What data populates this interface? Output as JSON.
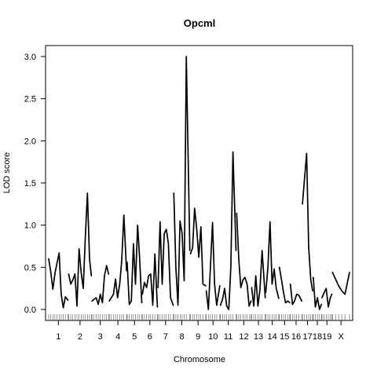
{
  "chart_data": {
    "type": "line",
    "title": "Opcml",
    "xlabel": "Chromosome",
    "ylabel": "LOD score",
    "ylim": [
      0,
      3.0
    ],
    "yticks": [
      0.0,
      0.5,
      1.0,
      1.5,
      2.0,
      2.5,
      3.0
    ],
    "ytick_labels": [
      "0.0",
      "0.5",
      "1.0",
      "1.5",
      "2.0",
      "2.5",
      "3.0"
    ],
    "grid": false,
    "chromosomes": [
      {
        "label": "1",
        "start": 0,
        "end": 93,
        "x": [
          0,
          10,
          20,
          30,
          40,
          50,
          60,
          70,
          80,
          93
        ],
        "y": [
          0.6,
          0.44,
          0.24,
          0.43,
          0.55,
          0.67,
          0.18,
          0.02,
          0.15,
          0.11
        ]
      },
      {
        "label": "2",
        "start": 96,
        "end": 205,
        "x": [
          96,
          106,
          116,
          126,
          136,
          146,
          156,
          166,
          176,
          186,
          196,
          205
        ],
        "y": [
          0.42,
          0.3,
          0.35,
          0.42,
          0.04,
          0.72,
          0.44,
          0.25,
          0.85,
          1.38,
          0.6,
          0.4
        ]
      },
      {
        "label": "3",
        "start": 208,
        "end": 288,
        "x": [
          208,
          218,
          228,
          238,
          248,
          258,
          268,
          278,
          288
        ],
        "y": [
          0.1,
          0.12,
          0.14,
          0.06,
          0.18,
          0.08,
          0.4,
          0.52,
          0.42
        ]
      },
      {
        "label": "4",
        "start": 291,
        "end": 374,
        "x": [
          291,
          301,
          311,
          321,
          331,
          341,
          351,
          361,
          374
        ],
        "y": [
          0.1,
          0.14,
          0.18,
          0.36,
          0.14,
          0.3,
          0.58,
          1.12,
          0.46
        ]
      },
      {
        "label": "5",
        "start": 377,
        "end": 447,
        "x": [
          377,
          387,
          397,
          407,
          417,
          427,
          437,
          447
        ],
        "y": [
          0.56,
          0.06,
          0.1,
          0.78,
          0.3,
          1.0,
          0.6,
          0.08
        ]
      },
      {
        "label": "6",
        "start": 450,
        "end": 522,
        "x": [
          450,
          460,
          470,
          480,
          490,
          500,
          510,
          522
        ],
        "y": [
          0.18,
          0.32,
          0.26,
          0.4,
          0.42,
          0.05,
          0.66,
          0.03
        ]
      },
      {
        "label": "7",
        "start": 525,
        "end": 598,
        "x": [
          525,
          535,
          545,
          555,
          565,
          575,
          585,
          598
        ],
        "y": [
          0.26,
          1.04,
          0.3,
          0.9,
          0.95,
          0.78,
          0.14,
          0.05
        ]
      },
      {
        "label": "8",
        "start": 601,
        "end": 678,
        "x": [
          601,
          611,
          621,
          631,
          641,
          651,
          661,
          678
        ],
        "y": [
          1.38,
          0.5,
          0.05,
          1.05,
          0.9,
          0.34,
          3.0,
          0.7
        ]
      },
      {
        "label": "9",
        "start": 681,
        "end": 754,
        "x": [
          681,
          691,
          701,
          711,
          721,
          731,
          741,
          754
        ],
        "y": [
          0.66,
          0.73,
          1.2,
          0.95,
          0.62,
          0.98,
          0.3,
          0.28
        ]
      },
      {
        "label": "10",
        "start": 757,
        "end": 822,
        "x": [
          757,
          767,
          777,
          787,
          797,
          807,
          822
        ],
        "y": [
          0.22,
          0.0,
          0.5,
          1.03,
          0.3,
          0.05,
          0.28
        ]
      },
      {
        "label": "11",
        "start": 825,
        "end": 900,
        "x": [
          825,
          835,
          845,
          855,
          865,
          875,
          885,
          900
        ],
        "y": [
          0.05,
          0.12,
          0.25,
          0.04,
          0.0,
          0.5,
          1.87,
          0.7
        ]
      },
      {
        "label": "12",
        "start": 903,
        "end": 972,
        "x": [
          903,
          913,
          923,
          933,
          943,
          953,
          963,
          972
        ],
        "y": [
          1.14,
          0.6,
          0.26,
          0.35,
          0.38,
          0.3,
          0.04,
          0.1
        ]
      },
      {
        "label": "13",
        "start": 975,
        "end": 1040,
        "x": [
          975,
          985,
          995,
          1005,
          1015,
          1025,
          1040
        ],
        "y": [
          0.26,
          0.04,
          0.4,
          0.04,
          0.24,
          0.7,
          0.14
        ]
      },
      {
        "label": "14",
        "start": 1043,
        "end": 1105,
        "x": [
          1043,
          1053,
          1063,
          1073,
          1083,
          1093,
          1105
        ],
        "y": [
          0.2,
          0.5,
          1.04,
          0.3,
          0.48,
          0.25,
          0.13
        ]
      },
      {
        "label": "15",
        "start": 1108,
        "end": 1158,
        "x": [
          1108,
          1118,
          1128,
          1138,
          1148,
          1158
        ],
        "y": [
          0.5,
          0.36,
          0.2,
          0.08,
          0.1,
          0.08
        ]
      },
      {
        "label": "16",
        "start": 1161,
        "end": 1216,
        "x": [
          1161,
          1171,
          1181,
          1191,
          1201,
          1216
        ],
        "y": [
          0.3,
          0.06,
          0.1,
          0.18,
          0.17,
          0.1
        ]
      },
      {
        "label": "17",
        "start": 1219,
        "end": 1268,
        "x": [
          1219,
          1229,
          1239,
          1249,
          1259,
          1268
        ],
        "y": [
          1.25,
          1.55,
          1.85,
          0.74,
          0.35,
          0.22
        ]
      },
      {
        "label": "18",
        "start": 1271,
        "end": 1310,
        "x": [
          1271,
          1281,
          1291,
          1301,
          1310
        ],
        "y": [
          0.38,
          0.03,
          0.14,
          0.0,
          0.06
        ]
      },
      {
        "label": "19",
        "start": 1313,
        "end": 1360,
        "x": [
          1313,
          1323,
          1333,
          1343,
          1353,
          1360
        ],
        "y": [
          0.14,
          0.2,
          0.25,
          0.03,
          0.14,
          0.18
        ]
      },
      {
        "label": "X",
        "start": 1363,
        "end": 1445,
        "x": [
          1363,
          1378,
          1393,
          1408,
          1423,
          1445
        ],
        "y": [
          0.44,
          0.36,
          0.28,
          0.22,
          0.18,
          0.44
        ]
      }
    ]
  }
}
